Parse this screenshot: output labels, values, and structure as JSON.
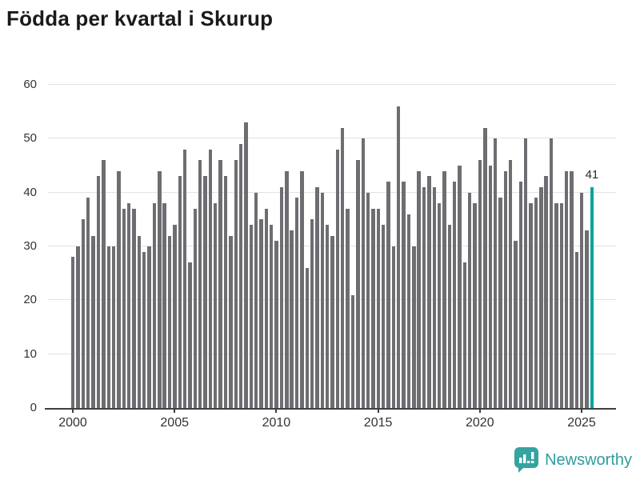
{
  "title": "Födda per kvartal i Skurup",
  "chart_data": {
    "type": "bar",
    "title": "Födda per kvartal i Skurup",
    "x_start": "2000 Q1",
    "x_end": "2025 Q3",
    "values": [
      28,
      30,
      35,
      39,
      32,
      43,
      46,
      30,
      30,
      44,
      37,
      38,
      37,
      32,
      29,
      30,
      38,
      44,
      38,
      32,
      34,
      43,
      48,
      27,
      37,
      46,
      43,
      48,
      38,
      46,
      43,
      32,
      46,
      49,
      53,
      34,
      40,
      35,
      37,
      34,
      31,
      41,
      44,
      33,
      39,
      44,
      26,
      35,
      41,
      40,
      34,
      32,
      48,
      52,
      37,
      21,
      46,
      50,
      40,
      37,
      37,
      34,
      42,
      30,
      56,
      42,
      36,
      30,
      44,
      41,
      43,
      41,
      38,
      44,
      34,
      42,
      45,
      27,
      40,
      38,
      46,
      52,
      45,
      50,
      39,
      44,
      46,
      31,
      42,
      50,
      38,
      39,
      41,
      43,
      50,
      38,
      38,
      44,
      44,
      29,
      40,
      33,
      41
    ],
    "xticks": [
      "2000",
      "2005",
      "2010",
      "2015",
      "2020",
      "2025"
    ],
    "yticks": [
      0,
      10,
      20,
      30,
      40,
      50,
      60
    ],
    "ylim": [
      0,
      60
    ],
    "grid": "horizontal",
    "bar_color": "#6e6e72",
    "highlight": {
      "index": 102,
      "label": "41",
      "color": "#00a49d"
    }
  },
  "footer": {
    "brand": "Newsworthy"
  }
}
